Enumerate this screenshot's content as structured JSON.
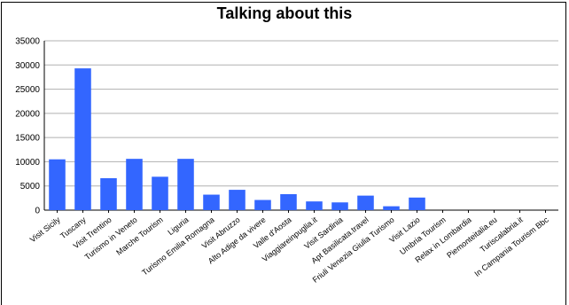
{
  "chart_data": {
    "type": "bar",
    "title": "Talking about this",
    "xlabel": "",
    "ylabel": "",
    "ylim": [
      0,
      35000
    ],
    "yticks": [
      0,
      5000,
      10000,
      15000,
      20000,
      25000,
      30000,
      35000
    ],
    "grid": true,
    "legend": "none",
    "bar_color": "#3366ff",
    "categories": [
      "Visit Sicily",
      "Tuscany",
      "Visit Trentino",
      "Turismo in Veneto",
      "Marche Tourism",
      "Liguria",
      "Turismo Emilia Romagna",
      "Visit Abruzzo",
      "Alto Adige da vivere",
      "Valle d'Aosta",
      "Viaggiareinpuglia.it",
      "Visit Sardinia",
      "Apt Basilicata.travel",
      "Friuli Venezia Giulia Turismo",
      "Visit Lazio",
      "Umbria Tourism",
      "Relax in Lombardia",
      "Piemonteitalia.eu",
      "Turiscalabria.it",
      "In Campania Tourism Bbc"
    ],
    "values": [
      10500,
      29300,
      6600,
      10600,
      6900,
      10600,
      3200,
      4200,
      2100,
      3300,
      1800,
      1600,
      3000,
      800,
      2600,
      0,
      0,
      0,
      0,
      0
    ]
  }
}
